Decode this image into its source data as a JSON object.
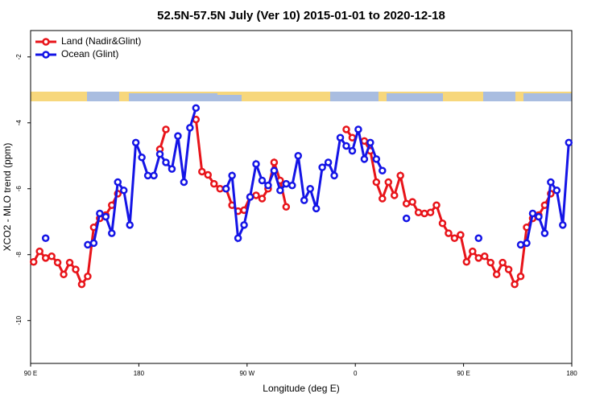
{
  "chart_data": {
    "type": "line",
    "title": "52.5N-57.5N July (Ver 10)   2015-01-01 to 2020-12-18",
    "x_label": "Longitude (deg E)",
    "y_label": "XCO2 - MLO trend (ppm)",
    "x": [
      92.5,
      97.5,
      102.5,
      107.5,
      112.5,
      117.5,
      122.5,
      127.5,
      132.5,
      137.5,
      142.5,
      147.5,
      152.5,
      157.5,
      162.5,
      167.5,
      172.5,
      177.5,
      182.5,
      187.5,
      192.5,
      197.5,
      202.5,
      207.5,
      212.5,
      217.5,
      222.5,
      227.5,
      232.5,
      237.5,
      242.5,
      247.5,
      252.5,
      257.5,
      262.5,
      267.5,
      272.5,
      277.5,
      282.5,
      287.5,
      292.5,
      297.5,
      302.5,
      307.5,
      312.5,
      317.5,
      322.5,
      327.5,
      332.5,
      337.5,
      342.5,
      347.5,
      352.5,
      357.5,
      362.5,
      367.5,
      372.5,
      377.5,
      382.5,
      387.5,
      392.5,
      397.5,
      402.5,
      407.5,
      412.5,
      417.5,
      422.5,
      427.5,
      432.5,
      437.5,
      442.5,
      447.5,
      452.5,
      457.5,
      462.5,
      467.5,
      472.5,
      477.5,
      482.5,
      487.5,
      492.5,
      497.5,
      502.5,
      507.5,
      512.5,
      517.5,
      522.5,
      527.5,
      532.5,
      537.5
    ],
    "series": [
      {
        "name": "Land (Nadir&Glint)",
        "color": "#e8141a",
        "values": [
          -8.22,
          -7.9,
          -8.1,
          -8.05,
          -8.24,
          -8.6,
          -8.24,
          -8.45,
          -8.9,
          -8.66,
          -7.17,
          -6.9,
          -6.8,
          -6.5,
          -6.15,
          null,
          null,
          null,
          null,
          null,
          null,
          -4.8,
          -4.2,
          null,
          null,
          null,
          null,
          -3.9,
          -5.48,
          -5.58,
          -5.85,
          -6.0,
          -6.0,
          -6.5,
          -6.68,
          -6.65,
          -6.25,
          -6.2,
          -6.3,
          -6.0,
          -5.2,
          -5.75,
          -6.55,
          null,
          null,
          null,
          null,
          null,
          null,
          null,
          null,
          null,
          -4.2,
          -4.45,
          null,
          -4.55,
          -4.85,
          -5.8,
          -6.3,
          -5.8,
          -6.2,
          -5.6,
          -6.45,
          -6.4,
          -6.72,
          -6.75,
          -6.72,
          -6.5,
          -7.05,
          -7.35,
          -7.5,
          -7.4,
          -8.22,
          -7.9,
          -8.1,
          -8.05,
          -8.24,
          -8.6,
          -8.24,
          -8.45,
          -8.9,
          -8.66,
          -7.17,
          -6.9,
          -6.8,
          -6.5,
          -6.15,
          null,
          null,
          null
        ]
      },
      {
        "name": "Ocean (Glint)",
        "color": "#1414e6",
        "values": [
          null,
          null,
          -7.5,
          null,
          null,
          null,
          null,
          null,
          null,
          -7.7,
          -7.65,
          -6.75,
          -6.85,
          -7.35,
          -5.8,
          -6.05,
          -7.1,
          -4.6,
          -5.05,
          -5.6,
          -5.6,
          -4.95,
          -5.2,
          -5.4,
          -4.4,
          -5.8,
          -4.15,
          -3.55,
          null,
          null,
          null,
          null,
          -6.0,
          -5.6,
          -7.5,
          -7.1,
          -6.25,
          -5.25,
          -5.75,
          -5.9,
          -5.45,
          -6.05,
          -5.85,
          -5.9,
          -5.0,
          -6.35,
          -6.0,
          -6.6,
          -5.35,
          -5.2,
          -5.6,
          -4.45,
          -4.7,
          -4.85,
          -4.2,
          -5.1,
          -4.6,
          -5.1,
          -5.45,
          null,
          null,
          null,
          -6.9,
          null,
          null,
          null,
          null,
          null,
          null,
          null,
          null,
          null,
          null,
          null,
          -7.5,
          null,
          null,
          null,
          null,
          null,
          null,
          -7.7,
          -7.65,
          -6.75,
          -6.85,
          -7.35,
          -5.8,
          -6.05,
          -7.1,
          -4.6
        ]
      }
    ],
    "xlim": [
      90,
      540
    ],
    "xticks": [
      {
        "value": 90,
        "label": "90 E"
      },
      {
        "value": 180,
        "label": "180"
      },
      {
        "value": 270,
        "label": "90 W"
      },
      {
        "value": 360,
        "label": "0"
      },
      {
        "value": 450,
        "label": "90 E"
      },
      {
        "value": 540,
        "label": "180"
      }
    ],
    "ylim": [
      -11.3,
      -1.2
    ],
    "yticks": [
      -2,
      -4,
      -6,
      -8,
      -10
    ],
    "legend": "top-left"
  }
}
